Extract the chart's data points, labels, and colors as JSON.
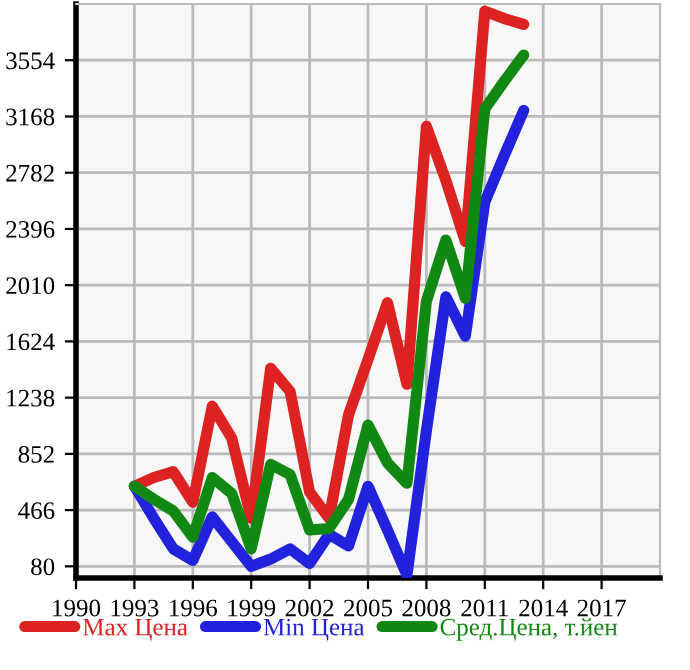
{
  "chart_data": {
    "type": "line",
    "x": [
      1993,
      1994,
      1995,
      1996,
      1997,
      1998,
      1999,
      2000,
      2001,
      2002,
      2003,
      2004,
      2005,
      2006,
      2007,
      2008,
      2009,
      2010,
      2011,
      2012,
      2013
    ],
    "series": [
      {
        "name": "Max Цена",
        "color": "#dd2222",
        "values": [
          630,
          690,
          730,
          520,
          1180,
          960,
          410,
          1440,
          1280,
          590,
          410,
          1120,
          1500,
          1890,
          1330,
          3100,
          2730,
          2310,
          3890,
          3840,
          3800
        ]
      },
      {
        "name": "Min Цена",
        "color": "#2222dd",
        "values": [
          630,
          410,
          200,
          120,
          420,
          250,
          80,
          130,
          200,
          100,
          300,
          220,
          630,
          330,
          20,
          1010,
          1930,
          1660,
          2580,
          2900,
          3210
        ]
      },
      {
        "name": "Сред.Цена, т.йен",
        "color": "#118811",
        "values": [
          630,
          540,
          460,
          280,
          690,
          580,
          200,
          780,
          710,
          330,
          340,
          540,
          1050,
          790,
          650,
          1900,
          2320,
          1920,
          3220,
          3410,
          3590
        ]
      }
    ],
    "xlim": [
      1990,
      2020
    ],
    "xticks": [
      1990,
      1993,
      1996,
      1999,
      2002,
      2005,
      2008,
      2011,
      2014,
      2017
    ],
    "ylim": [
      0,
      3940
    ],
    "yticks": [
      80,
      466,
      852,
      1238,
      1624,
      2010,
      2396,
      2782,
      3168,
      3554
    ],
    "grid": true,
    "legend": "bottom",
    "marker": "none",
    "line_style": "solid"
  }
}
